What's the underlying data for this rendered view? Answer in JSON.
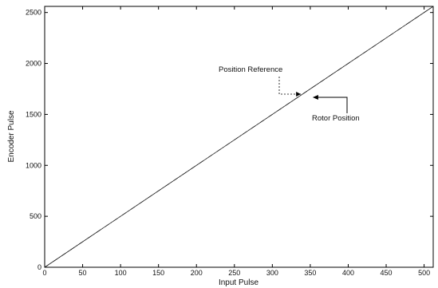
{
  "chart_data": {
    "type": "line",
    "xlabel": "Input Pulse",
    "ylabel": "Encoder Pulse",
    "xlim": [
      0,
      512
    ],
    "ylim": [
      0,
      2560
    ],
    "xticks": [
      0,
      50,
      100,
      150,
      200,
      250,
      300,
      350,
      400,
      450,
      500
    ],
    "yticks": [
      0,
      500,
      1000,
      1500,
      2000,
      2500
    ],
    "grid": false,
    "series": [
      {
        "name": "Position Reference",
        "style": "dashed",
        "x": [
          0,
          512
        ],
        "y": [
          0,
          2560
        ]
      },
      {
        "name": "Rotor Position",
        "style": "solid",
        "x": [
          0,
          512
        ],
        "y": [
          0,
          2560
        ]
      }
    ],
    "annotations": [
      {
        "text": "Position Reference",
        "target": [
          325,
          1680
        ]
      },
      {
        "text": "Rotor Position",
        "target": [
          350,
          1690
        ]
      }
    ],
    "colors": {
      "line": "#222222",
      "axis": "#000000",
      "text": "#111111"
    }
  }
}
